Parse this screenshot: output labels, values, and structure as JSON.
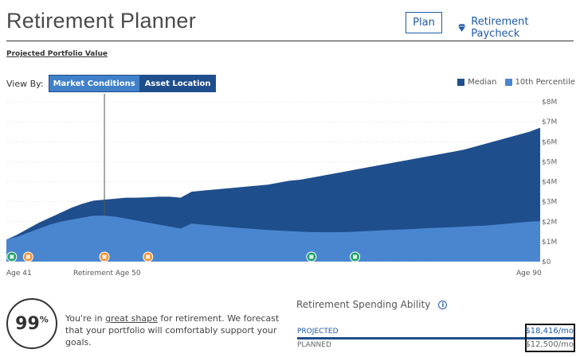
{
  "header": {
    "title": "Retirement Planner",
    "plan_button": "Plan",
    "paycheck_link": "Retirement Paycheck"
  },
  "section_label": "Projected Portfolio Value",
  "view_by": {
    "label": "View By:",
    "options": [
      "Market Conditions",
      "Asset Location"
    ],
    "selected": "Market Conditions"
  },
  "legend": {
    "median": "Median",
    "tenth": "10th Percentile"
  },
  "colors": {
    "median": "#1f4e8c",
    "tenth": "#4a86cf",
    "accent": "#1e5aa8",
    "marker_orange": "#f0963c",
    "marker_green": "#22a36b"
  },
  "chart_data": {
    "type": "area",
    "x": [
      41,
      42,
      43,
      44,
      45,
      46,
      47,
      48,
      49,
      50,
      51,
      52,
      53,
      54,
      55,
      56,
      57,
      58,
      59,
      60,
      61,
      62,
      63,
      64,
      65,
      66,
      67,
      68,
      69,
      70,
      71,
      72,
      73,
      74,
      75,
      76,
      77,
      78,
      79,
      80,
      81,
      82,
      83,
      84,
      85,
      86,
      87,
      88,
      89,
      90
    ],
    "series": [
      {
        "name": "Median",
        "values": [
          1.1,
          1.35,
          1.65,
          1.95,
          2.2,
          2.45,
          2.7,
          2.9,
          3.05,
          3.1,
          3.15,
          3.2,
          3.2,
          3.22,
          3.25,
          3.25,
          3.2,
          3.5,
          3.55,
          3.6,
          3.65,
          3.7,
          3.75,
          3.8,
          3.85,
          3.95,
          4.05,
          4.1,
          4.2,
          4.3,
          4.4,
          4.5,
          4.6,
          4.7,
          4.8,
          4.9,
          5.0,
          5.1,
          5.2,
          5.3,
          5.4,
          5.5,
          5.6,
          5.75,
          5.9,
          6.05,
          6.2,
          6.35,
          6.5,
          6.7
        ]
      },
      {
        "name": "10th Percentile",
        "values": [
          1.1,
          1.25,
          1.45,
          1.65,
          1.85,
          2.0,
          2.1,
          2.2,
          2.3,
          2.3,
          2.25,
          2.15,
          2.05,
          1.95,
          1.85,
          1.75,
          1.65,
          1.9,
          1.85,
          1.8,
          1.75,
          1.7,
          1.66,
          1.62,
          1.58,
          1.55,
          1.52,
          1.5,
          1.48,
          1.47,
          1.47,
          1.48,
          1.5,
          1.52,
          1.55,
          1.58,
          1.6,
          1.62,
          1.65,
          1.68,
          1.7,
          1.72,
          1.75,
          1.78,
          1.8,
          1.85,
          1.9,
          1.95,
          2.0,
          2.02
        ]
      }
    ],
    "yticks": [
      "$0",
      "$1M",
      "$2M",
      "$3M",
      "$4M",
      "$5M",
      "$6M",
      "$7M",
      "$8M"
    ],
    "ylim": [
      0,
      8
    ],
    "xlim": [
      41,
      90
    ],
    "retirement_age": 50,
    "age_labels": {
      "start": "Age 41",
      "retirement": "Retirement Age 50",
      "end": "Age 90"
    },
    "grid": true,
    "legend": "top-right",
    "markers": [
      {
        "age": 41.5,
        "kind": "home-icon",
        "color": "#22a36b"
      },
      {
        "age": 43,
        "kind": "graduation-icon",
        "color": "#f0963c"
      },
      {
        "age": 50,
        "kind": "umbrella-icon",
        "color": "#f0963c"
      },
      {
        "age": 54,
        "kind": "umbrella-icon",
        "color": "#f0963c"
      },
      {
        "age": 69,
        "kind": "building-icon",
        "color": "#22a36b"
      },
      {
        "age": 73,
        "kind": "building-icon",
        "color": "#22a36b"
      }
    ]
  },
  "score": {
    "value": "99",
    "unit": "%",
    "message_pre": "You're in ",
    "message_link": "great shape",
    "message_post": " for retirement. We forecast that your portfolio will comfortably support your goals."
  },
  "spending": {
    "title": "Retirement Spending Ability",
    "projected_label": "PROJECTED",
    "projected_value": "$18,416/mo",
    "planned_label": "PLANNED",
    "planned_value": "$12,500/mo"
  }
}
